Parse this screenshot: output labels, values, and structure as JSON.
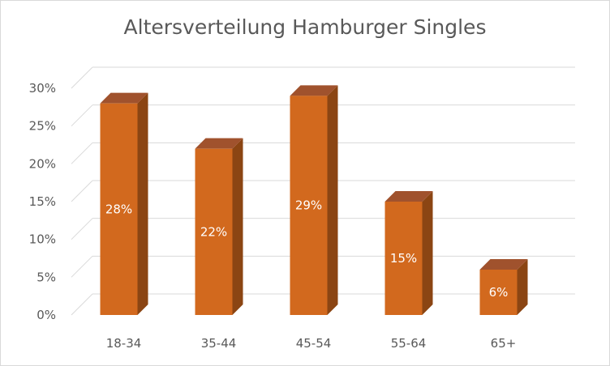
{
  "chart_data": {
    "type": "bar",
    "title": "Altersverteilung Hamburger Singles",
    "categories": [
      "18-34",
      "35-44",
      "45-54",
      "55-64",
      "65+"
    ],
    "values": [
      28,
      22,
      29,
      15,
      6
    ],
    "data_labels": [
      "28%",
      "22%",
      "29%",
      "15%",
      "6%"
    ],
    "xlabel": "",
    "ylabel": "",
    "ylim": [
      0,
      30
    ],
    "yticks": [
      "0%",
      "5%",
      "10%",
      "15%",
      "20%",
      "25%",
      "30%"
    ],
    "ytick_values": [
      0,
      5,
      10,
      15,
      20,
      25,
      30
    ],
    "style": "3d-column",
    "grid": true,
    "legend": "none",
    "colors": {
      "front": "#d2691e",
      "side": "#8b4513",
      "top": "#a0522d",
      "grid": "#d9d9d9"
    }
  }
}
